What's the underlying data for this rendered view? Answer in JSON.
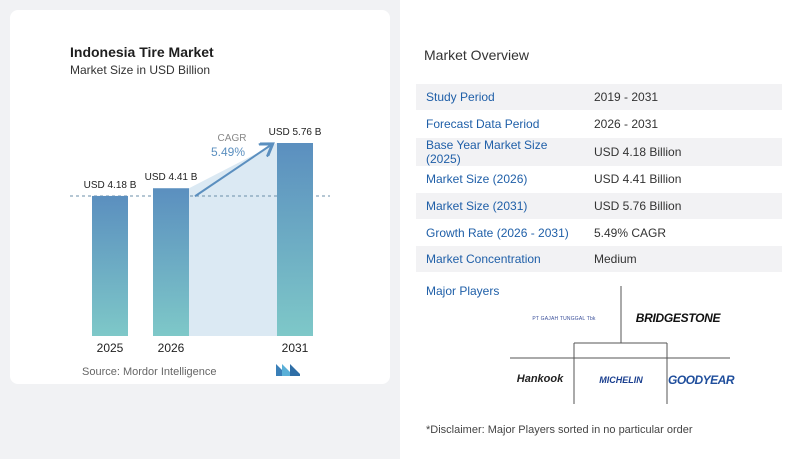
{
  "chart_data": {
    "type": "bar",
    "title": "Indonesia Tire Market",
    "subtitle": "Market Size in USD Billion",
    "categories": [
      "2025",
      "2026",
      "2031"
    ],
    "values": [
      4.18,
      4.41,
      5.76
    ],
    "data_labels": [
      "USD 4.18 B",
      "USD 4.41 B",
      "USD 5.76 B"
    ],
    "ylim": [
      0,
      5.76
    ],
    "cagr_label": "CAGR",
    "cagr_value": "5.49%",
    "colors": {
      "bar": "#5b8fbf",
      "bar_bottom": "#7ec8c8",
      "band": "#dbe9f3",
      "arrow": "#5b8fbf"
    }
  },
  "source": "Source:  Mordor Intelligence",
  "overview": {
    "title": "Market Overview",
    "rows": [
      {
        "key": "Study Period",
        "value": "2019 - 2031"
      },
      {
        "key": "Forecast Data Period",
        "value": "2026 - 2031"
      },
      {
        "key": "Base Year Market Size (2025)",
        "value": "USD 4.18 Billion"
      },
      {
        "key": "Market Size (2026)",
        "value": "USD 4.41 Billion"
      },
      {
        "key": "Market Size (2031)",
        "value": "USD 5.76 Billion"
      },
      {
        "key": "Growth Rate (2026 - 2031)",
        "value": "5.49% CAGR"
      },
      {
        "key": "Market Concentration",
        "value": "Medium"
      }
    ]
  },
  "players": {
    "title": "Major Players",
    "items": [
      "PT GAJAH TUNGGAL Tbk",
      "BRIDGESTONE",
      "Hankook",
      "MICHELIN",
      "GOODYEAR"
    ]
  },
  "disclaimer": "*Disclaimer: Major Players sorted in no particular order"
}
